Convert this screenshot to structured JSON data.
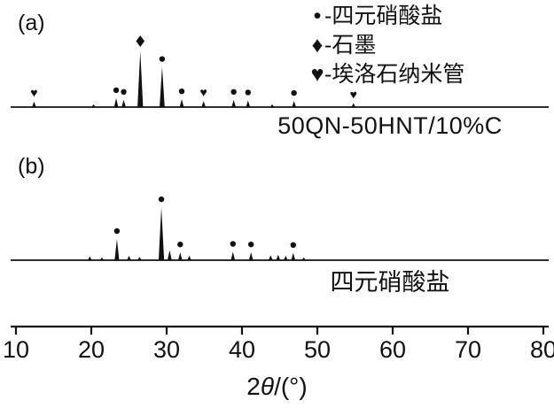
{
  "legend": {
    "items": [
      {
        "symbol": "•",
        "separator": "-",
        "label": "四元硝酸盐"
      },
      {
        "symbol": "♦",
        "separator": "-",
        "label": "石墨"
      },
      {
        "symbol": "♥",
        "separator": "-",
        "label": "埃洛石纳米管"
      }
    ]
  },
  "panel_a": {
    "tag": "(a)",
    "caption": "50QN-50HNT/10%C"
  },
  "panel_b": {
    "tag": "(b)",
    "caption": "四元硝酸盐"
  },
  "x_axis": {
    "label_pre": "2",
    "label_theta": "θ",
    "label_post": "/(°)",
    "full_label": "2θ/(°)"
  },
  "colors": {
    "ink": "#111111",
    "background": "#ffffff"
  },
  "chart_data": {
    "type": "line",
    "subtype": "xrd-pattern",
    "title": "",
    "xlabel": "2θ/(°)",
    "ylabel": "",
    "xlim": [
      10,
      80
    ],
    "x_ticks": [
      10,
      20,
      30,
      40,
      50,
      60,
      70,
      80
    ],
    "grid": false,
    "legend_position": "top-right",
    "legend": [
      {
        "marker": "dot",
        "label": "四元硝酸盐"
      },
      {
        "marker": "diamond",
        "label": "石墨"
      },
      {
        "marker": "heart",
        "label": "埃洛石纳米管"
      }
    ],
    "panels": [
      {
        "tag": "(a)",
        "name": "50QN-50HNT/10%C",
        "peaks": [
          {
            "two_theta": 12.4,
            "rel_intensity": 10,
            "marker": "heart"
          },
          {
            "two_theta": 20.3,
            "rel_intensity": 5,
            "marker": ""
          },
          {
            "two_theta": 23.3,
            "rel_intensity": 16,
            "marker": "dot"
          },
          {
            "two_theta": 24.3,
            "rel_intensity": 13,
            "marker": "dot"
          },
          {
            "two_theta": 26.5,
            "rel_intensity": 100,
            "marker": "diamond"
          },
          {
            "two_theta": 29.4,
            "rel_intensity": 72,
            "marker": "dot"
          },
          {
            "two_theta": 32.0,
            "rel_intensity": 14,
            "marker": "dot"
          },
          {
            "two_theta": 34.9,
            "rel_intensity": 11,
            "marker": "heart"
          },
          {
            "two_theta": 38.9,
            "rel_intensity": 13,
            "marker": "dot"
          },
          {
            "two_theta": 40.8,
            "rel_intensity": 12,
            "marker": "dot"
          },
          {
            "two_theta": 44.0,
            "rel_intensity": 5,
            "marker": ""
          },
          {
            "two_theta": 46.9,
            "rel_intensity": 11,
            "marker": "dot"
          },
          {
            "two_theta": 54.8,
            "rel_intensity": 7,
            "marker": "heart"
          }
        ]
      },
      {
        "tag": "(b)",
        "name": "四元硝酸盐",
        "peaks": [
          {
            "two_theta": 19.8,
            "rel_intensity": 7,
            "marker": ""
          },
          {
            "two_theta": 21.4,
            "rel_intensity": 5,
            "marker": ""
          },
          {
            "two_theta": 23.4,
            "rel_intensity": 38,
            "marker": "dot"
          },
          {
            "two_theta": 25.0,
            "rel_intensity": 8,
            "marker": ""
          },
          {
            "two_theta": 26.4,
            "rel_intensity": 6,
            "marker": ""
          },
          {
            "two_theta": 29.3,
            "rel_intensity": 95,
            "marker": "dot"
          },
          {
            "two_theta": 30.4,
            "rel_intensity": 18,
            "marker": ""
          },
          {
            "two_theta": 31.8,
            "rel_intensity": 14,
            "marker": "dot"
          },
          {
            "two_theta": 33.0,
            "rel_intensity": 8,
            "marker": ""
          },
          {
            "two_theta": 38.8,
            "rel_intensity": 15,
            "marker": "dot"
          },
          {
            "two_theta": 41.2,
            "rel_intensity": 14,
            "marker": "dot"
          },
          {
            "two_theta": 43.8,
            "rel_intensity": 9,
            "marker": ""
          },
          {
            "two_theta": 44.8,
            "rel_intensity": 10,
            "marker": ""
          },
          {
            "two_theta": 45.8,
            "rel_intensity": 8,
            "marker": ""
          },
          {
            "two_theta": 46.8,
            "rel_intensity": 13,
            "marker": "dot"
          },
          {
            "two_theta": 48.2,
            "rel_intensity": 5,
            "marker": ""
          }
        ]
      }
    ]
  }
}
